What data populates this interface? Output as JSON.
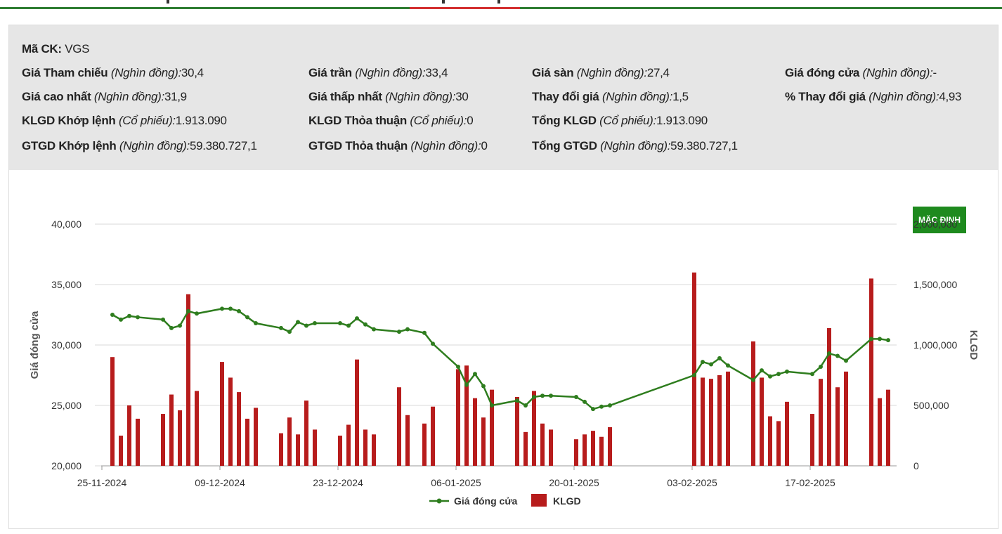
{
  "info": {
    "ticker": {
      "label": "Mã CK:",
      "value": "VGS"
    },
    "rows": [
      [
        {
          "label": "Giá Tham chiếu",
          "unit": "(Nghìn đồng):",
          "value": "30,4"
        },
        {
          "label": "Giá trần",
          "unit": "(Nghìn đồng):",
          "value": "33,4"
        },
        {
          "label": "Giá sàn",
          "unit": "(Nghìn đồng):",
          "value": "27,4"
        },
        {
          "label": "Giá đóng cửa",
          "unit": "(Nghìn đồng):",
          "value": "-"
        }
      ],
      [
        {
          "label": "Giá cao nhất",
          "unit": "(Nghìn đồng):",
          "value": "31,9"
        },
        {
          "label": "Giá thấp nhất",
          "unit": "(Nghìn đồng):",
          "value": "30"
        },
        {
          "label": "Thay đổi giá",
          "unit": "(Nghìn đồng):",
          "value": "1,5"
        },
        {
          "label": "% Thay đổi giá",
          "unit": "(Nghìn đồng):",
          "value": "4,93"
        }
      ],
      [
        {
          "label": "KLGD Khớp lệnh",
          "unit": "(Cổ phiếu):",
          "value": "1.913.090"
        },
        {
          "label": "KLGD Thỏa thuận",
          "unit": "(Cổ phiếu):",
          "value": "0"
        },
        {
          "label": "Tổng KLGD",
          "unit": "(Cổ phiếu):",
          "value": "1.913.090"
        }
      ],
      [
        {
          "label": "GTGD Khớp lệnh",
          "unit": "(Nghìn đồng):",
          "value": "59.380.727,1"
        },
        {
          "label": "GTGD Thỏa thuận",
          "unit": "(Nghìn đồng):",
          "value": "0"
        },
        {
          "label": "Tổng GTGD",
          "unit": "(Nghìn đồng):",
          "value": "59.380.727,1"
        }
      ]
    ]
  },
  "default_button_label": "MẶC ĐỊNH",
  "chart_data": {
    "type": "bar",
    "colors": {
      "price": "#2e7d1e",
      "volume": "#b71c1c",
      "grid": "#d9d9d9",
      "axis": "#333333"
    },
    "y_left": {
      "label": "Giá đóng cửa",
      "range": [
        20000,
        40000
      ],
      "ticks": [
        "20,000",
        "25,000",
        "30,000",
        "35,000",
        "40,000"
      ]
    },
    "y_right": {
      "label": "KLGD",
      "range": [
        0,
        2000000
      ],
      "ticks": [
        "0",
        "500,000",
        "1,000,000",
        "1,500,000",
        "2,000,000"
      ]
    },
    "x_ticks": [
      "25-11-2024",
      "09-12-2024",
      "23-12-2024",
      "06-01-2025",
      "20-01-2025",
      "03-02-2025",
      "17-02-2025"
    ],
    "x_range": [
      "2024-11-25",
      "2025-02-26"
    ],
    "legend": [
      {
        "name": "Giá đóng cửa",
        "type": "line"
      },
      {
        "name": "KLGD",
        "type": "bar"
      }
    ],
    "series": [
      {
        "name": "KLGD",
        "type": "bar",
        "points": [
          [
            "2024-11-26",
            900000
          ],
          [
            "2024-11-27",
            250000
          ],
          [
            "2024-11-28",
            500000
          ],
          [
            "2024-11-29",
            390000
          ],
          [
            "2024-12-02",
            430000
          ],
          [
            "2024-12-03",
            590000
          ],
          [
            "2024-12-04",
            460000
          ],
          [
            "2024-12-05",
            1420000
          ],
          [
            "2024-12-06",
            620000
          ],
          [
            "2024-12-09",
            860000
          ],
          [
            "2024-12-10",
            730000
          ],
          [
            "2024-12-11",
            610000
          ],
          [
            "2024-12-12",
            390000
          ],
          [
            "2024-12-13",
            480000
          ],
          [
            "2024-12-16",
            270000
          ],
          [
            "2024-12-17",
            400000
          ],
          [
            "2024-12-18",
            260000
          ],
          [
            "2024-12-19",
            540000
          ],
          [
            "2024-12-20",
            300000
          ],
          [
            "2024-12-23",
            250000
          ],
          [
            "2024-12-24",
            340000
          ],
          [
            "2024-12-25",
            880000
          ],
          [
            "2024-12-26",
            300000
          ],
          [
            "2024-12-27",
            260000
          ],
          [
            "2024-12-30",
            650000
          ],
          [
            "2024-12-31",
            420000
          ],
          [
            "2025-01-02",
            350000
          ],
          [
            "2025-01-03",
            490000
          ],
          [
            "2025-01-06",
            800000
          ],
          [
            "2025-01-07",
            830000
          ],
          [
            "2025-01-08",
            560000
          ],
          [
            "2025-01-09",
            400000
          ],
          [
            "2025-01-10",
            630000
          ],
          [
            "2025-01-13",
            570000
          ],
          [
            "2025-01-14",
            280000
          ],
          [
            "2025-01-15",
            620000
          ],
          [
            "2025-01-16",
            350000
          ],
          [
            "2025-01-17",
            300000
          ],
          [
            "2025-01-20",
            220000
          ],
          [
            "2025-01-21",
            260000
          ],
          [
            "2025-01-22",
            290000
          ],
          [
            "2025-01-23",
            240000
          ],
          [
            "2025-01-24",
            320000
          ],
          [
            "2025-02-03",
            1600000
          ],
          [
            "2025-02-04",
            730000
          ],
          [
            "2025-02-05",
            720000
          ],
          [
            "2025-02-06",
            750000
          ],
          [
            "2025-02-07",
            780000
          ],
          [
            "2025-02-10",
            1030000
          ],
          [
            "2025-02-11",
            730000
          ],
          [
            "2025-02-12",
            410000
          ],
          [
            "2025-02-13",
            370000
          ],
          [
            "2025-02-14",
            530000
          ],
          [
            "2025-02-17",
            430000
          ],
          [
            "2025-02-18",
            720000
          ],
          [
            "2025-02-19",
            1140000
          ],
          [
            "2025-02-20",
            650000
          ],
          [
            "2025-02-21",
            780000
          ],
          [
            "2025-02-24",
            1550000
          ],
          [
            "2025-02-25",
            560000
          ],
          [
            "2025-02-26",
            630000
          ]
        ]
      },
      {
        "name": "Giá đóng cửa",
        "type": "line",
        "points": [
          [
            "2024-11-26",
            32500
          ],
          [
            "2024-11-27",
            32100
          ],
          [
            "2024-11-28",
            32400
          ],
          [
            "2024-11-29",
            32300
          ],
          [
            "2024-12-02",
            32100
          ],
          [
            "2024-12-03",
            31400
          ],
          [
            "2024-12-04",
            31600
          ],
          [
            "2024-12-05",
            32800
          ],
          [
            "2024-12-06",
            32600
          ],
          [
            "2024-12-09",
            33000
          ],
          [
            "2024-12-10",
            33000
          ],
          [
            "2024-12-11",
            32800
          ],
          [
            "2024-12-12",
            32300
          ],
          [
            "2024-12-13",
            31800
          ],
          [
            "2024-12-16",
            31400
          ],
          [
            "2024-12-17",
            31100
          ],
          [
            "2024-12-18",
            31900
          ],
          [
            "2024-12-19",
            31600
          ],
          [
            "2024-12-20",
            31800
          ],
          [
            "2024-12-23",
            31800
          ],
          [
            "2024-12-24",
            31600
          ],
          [
            "2024-12-25",
            32200
          ],
          [
            "2024-12-26",
            31700
          ],
          [
            "2024-12-27",
            31300
          ],
          [
            "2024-12-30",
            31100
          ],
          [
            "2024-12-31",
            31300
          ],
          [
            "2025-01-02",
            31000
          ],
          [
            "2025-01-03",
            30100
          ],
          [
            "2025-01-06",
            28200
          ],
          [
            "2025-01-07",
            26700
          ],
          [
            "2025-01-08",
            27600
          ],
          [
            "2025-01-09",
            26600
          ],
          [
            "2025-01-10",
            25000
          ],
          [
            "2025-01-13",
            25400
          ],
          [
            "2025-01-14",
            25000
          ],
          [
            "2025-01-15",
            25700
          ],
          [
            "2025-01-16",
            25800
          ],
          [
            "2025-01-17",
            25800
          ],
          [
            "2025-01-20",
            25700
          ],
          [
            "2025-01-21",
            25300
          ],
          [
            "2025-01-22",
            24700
          ],
          [
            "2025-01-23",
            24900
          ],
          [
            "2025-01-24",
            25000
          ],
          [
            "2025-02-03",
            27500
          ],
          [
            "2025-02-04",
            28600
          ],
          [
            "2025-02-05",
            28400
          ],
          [
            "2025-02-06",
            28900
          ],
          [
            "2025-02-07",
            28300
          ],
          [
            "2025-02-10",
            27100
          ],
          [
            "2025-02-11",
            27900
          ],
          [
            "2025-02-12",
            27400
          ],
          [
            "2025-02-13",
            27600
          ],
          [
            "2025-02-14",
            27800
          ],
          [
            "2025-02-17",
            27600
          ],
          [
            "2025-02-18",
            28200
          ],
          [
            "2025-02-19",
            29300
          ],
          [
            "2025-02-20",
            29100
          ],
          [
            "2025-02-21",
            28700
          ],
          [
            "2025-02-24",
            30500
          ],
          [
            "2025-02-25",
            30500
          ],
          [
            "2025-02-26",
            30400
          ]
        ]
      }
    ]
  }
}
